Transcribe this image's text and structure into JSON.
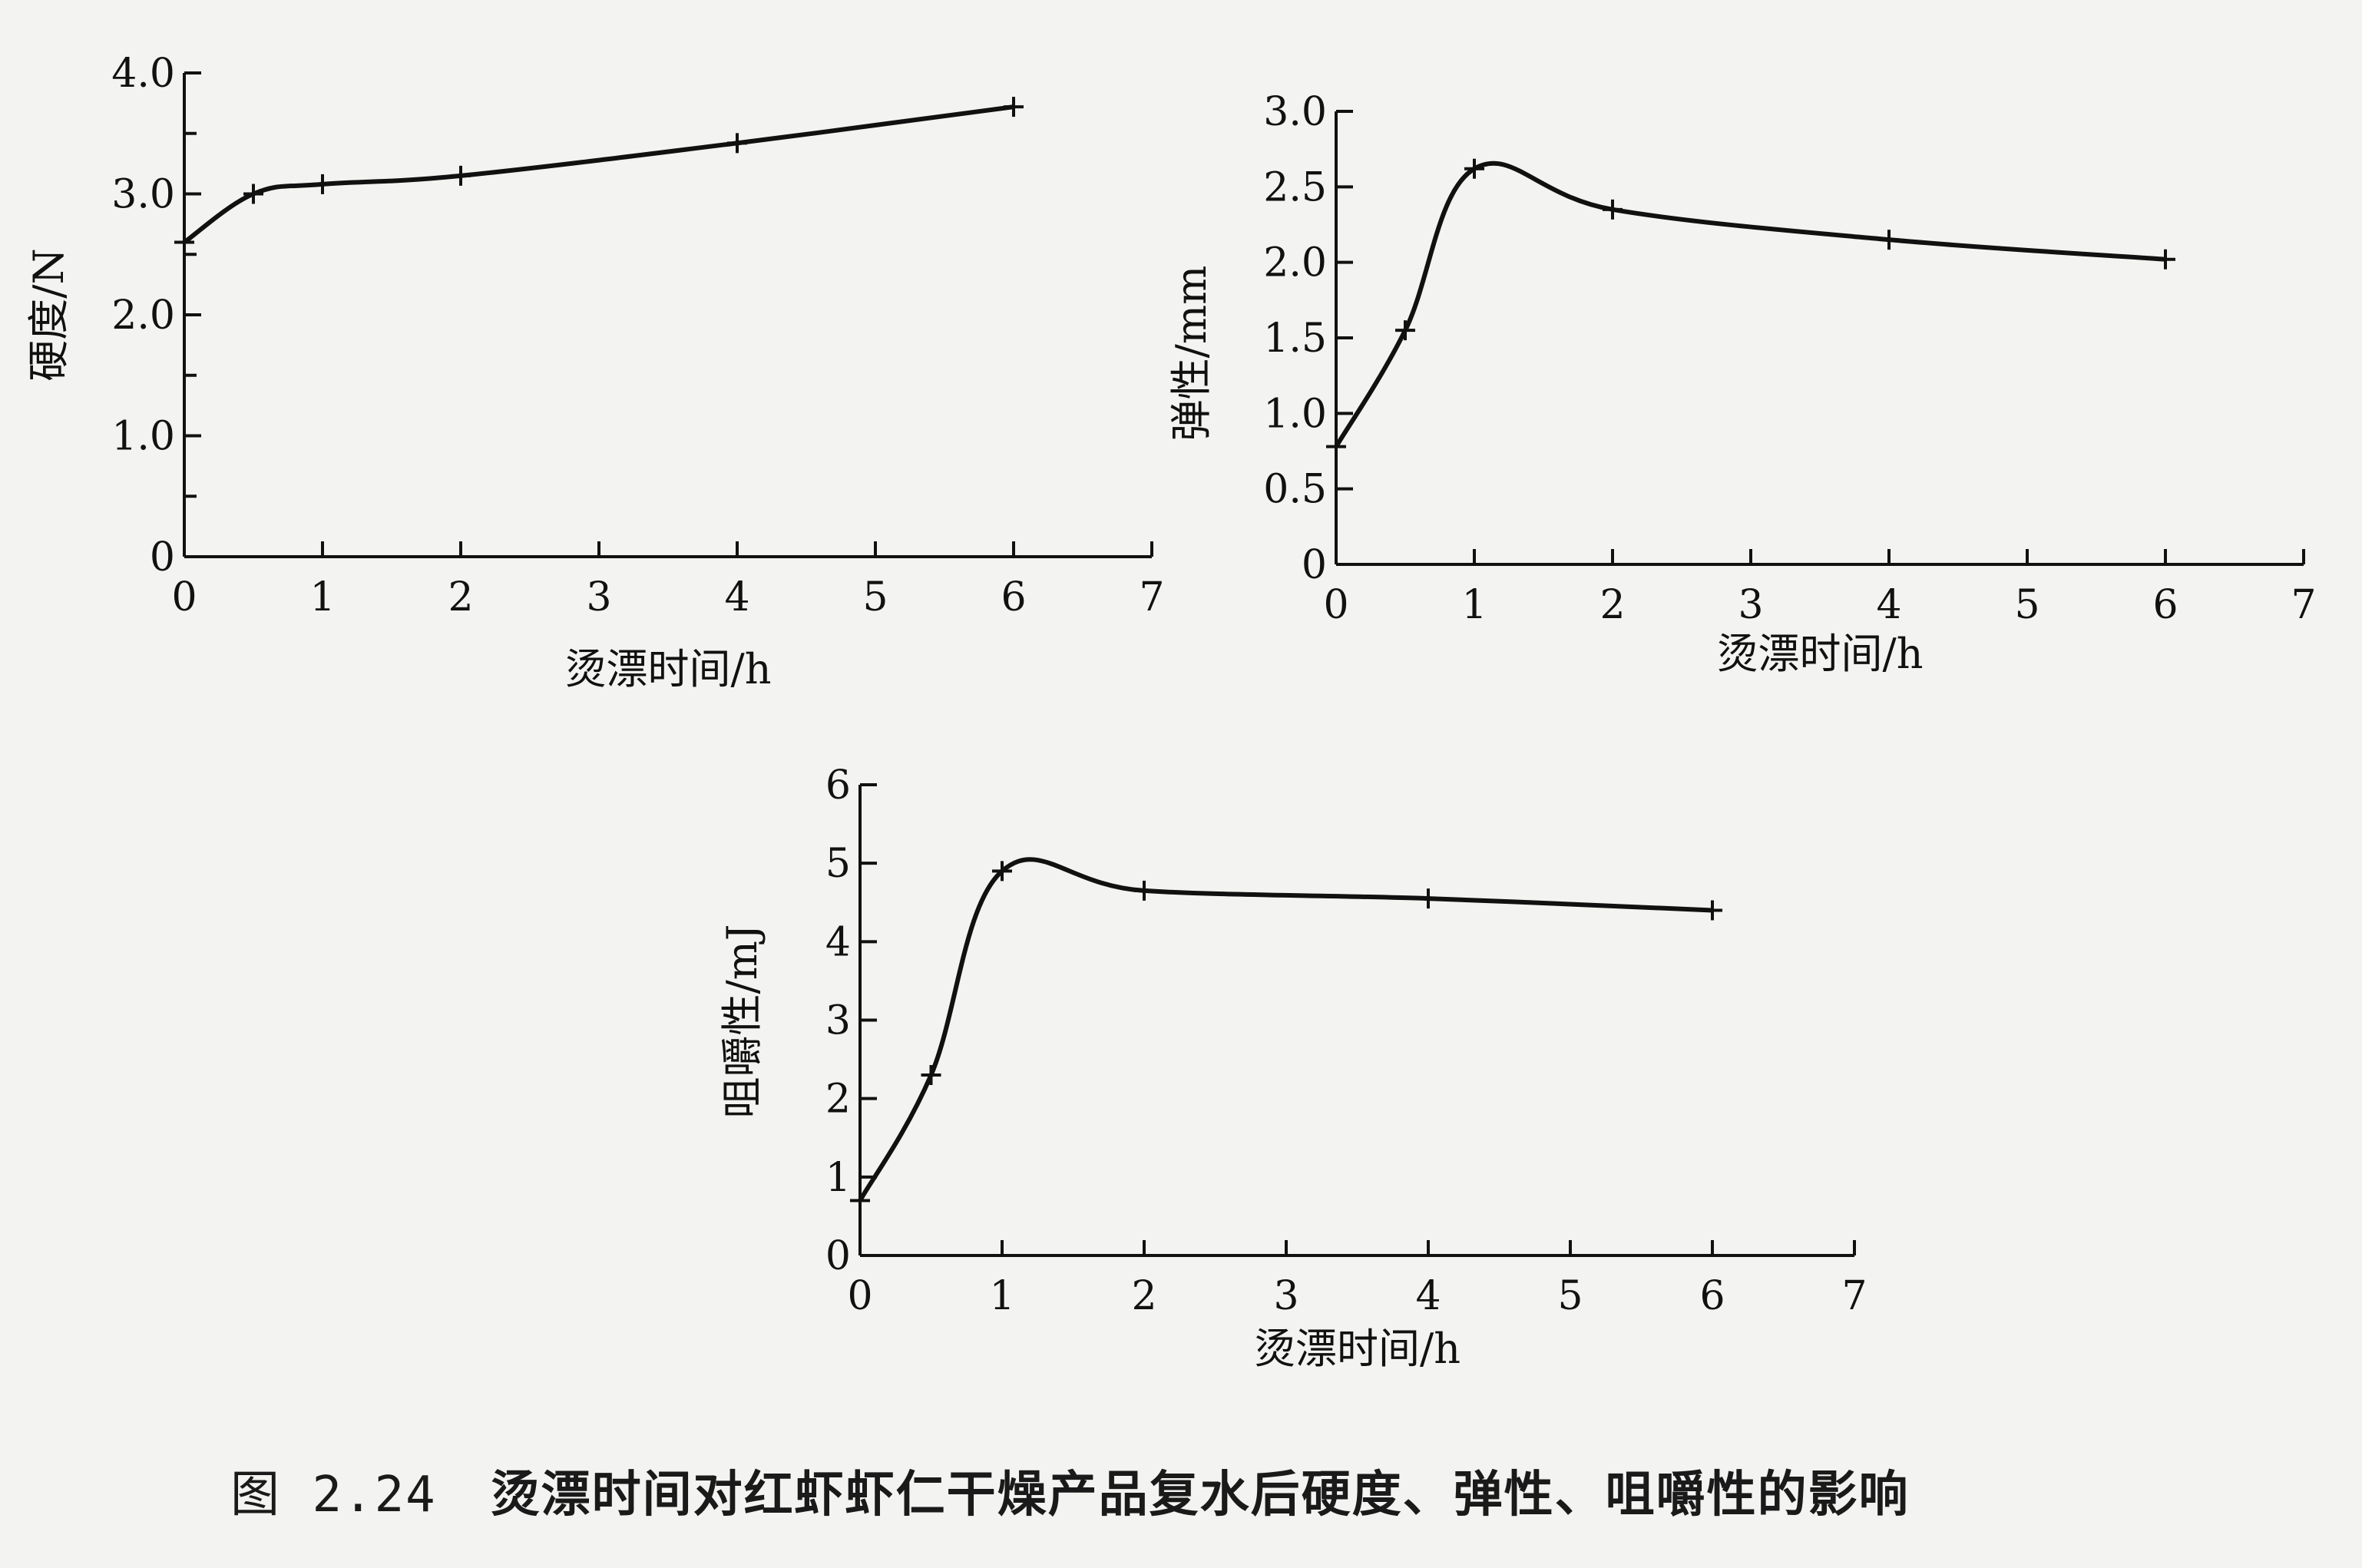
{
  "caption": {
    "figure_number": "图 2.24",
    "text": "烫漂时间对红虾虾仁干燥产品复水后硬度、弹性、咀嚼性的影响"
  },
  "chart_data": [
    {
      "type": "line",
      "xlabel": "烫漂时间/h",
      "ylabel": "硬度/N",
      "xlim": [
        0,
        7
      ],
      "ylim": [
        0,
        4.0
      ],
      "x_ticks": [
        0,
        1,
        2,
        3,
        4,
        5,
        6,
        7
      ],
      "y_ticks": [
        0,
        1.0,
        2.0,
        3.0,
        4.0
      ],
      "y_tick_labels": [
        "0",
        "1.0",
        "2.0",
        "3.0",
        "4.0"
      ],
      "x": [
        0,
        0.5,
        1,
        2,
        4,
        6
      ],
      "y": [
        2.6,
        3.0,
        3.08,
        3.15,
        3.42,
        3.72
      ],
      "grid": false
    },
    {
      "type": "line",
      "xlabel": "烫漂时间/h",
      "ylabel": "弹性/mm",
      "xlim": [
        0,
        7
      ],
      "ylim": [
        0,
        3.0
      ],
      "x_ticks": [
        0,
        1,
        2,
        3,
        4,
        5,
        6,
        7
      ],
      "y_ticks": [
        0,
        0.5,
        1.0,
        1.5,
        2.0,
        2.5,
        3.0
      ],
      "y_tick_labels": [
        "0",
        "0.5",
        "1.0",
        "1.5",
        "2.0",
        "2.5",
        "3.0"
      ],
      "x": [
        0,
        0.5,
        1,
        2,
        4,
        6
      ],
      "y": [
        0.78,
        1.55,
        2.62,
        2.35,
        2.15,
        2.02
      ],
      "grid": false
    },
    {
      "type": "line",
      "xlabel": "烫漂时间/h",
      "ylabel": "咀嚼性/mJ",
      "xlim": [
        0,
        7
      ],
      "ylim": [
        0,
        6
      ],
      "x_ticks": [
        0,
        1,
        2,
        3,
        4,
        5,
        6,
        7
      ],
      "y_ticks": [
        0,
        1,
        2,
        3,
        4,
        5,
        6
      ],
      "y_tick_labels": [
        "0",
        "1",
        "2",
        "3",
        "4",
        "5",
        "6"
      ],
      "x": [
        0,
        0.5,
        1,
        2,
        4,
        6
      ],
      "y": [
        0.7,
        2.3,
        4.9,
        4.65,
        4.55,
        4.4
      ],
      "grid": false
    }
  ]
}
